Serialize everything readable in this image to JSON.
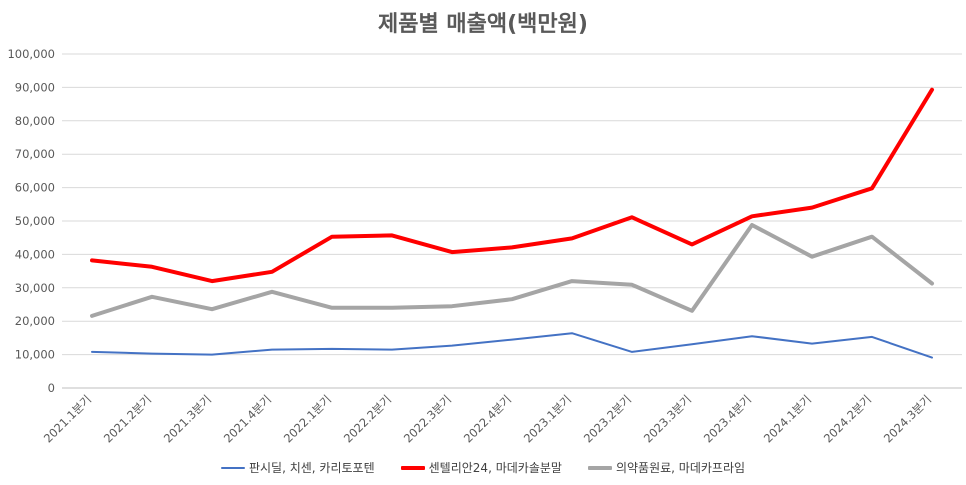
{
  "chart_data": {
    "type": "line",
    "title": "제품별 매출액(백만원)",
    "categories": [
      "2021.1분기",
      "2021.2분기",
      "2021.3분기",
      "2021.4분기",
      "2022.1분기",
      "2022.2분기",
      "2022.3분기",
      "2022.4분기",
      "2023.1분기",
      "2023.2분기",
      "2023.3분기",
      "2023.4분기",
      "2024.1분기",
      "2024.2분기",
      "2024.3분기"
    ],
    "y_ticks": [
      "0",
      "10,000",
      "20,000",
      "30,000",
      "40,000",
      "50,000",
      "60,000",
      "70,000",
      "80,000",
      "90,000",
      "100,000"
    ],
    "ylim": [
      0,
      100000
    ],
    "grid": true,
    "legend_position": "bottom",
    "series": [
      {
        "name": "판시딜, 치센, 카리토포텐",
        "color": "#4472C4",
        "values": [
          10800,
          10300,
          10000,
          11500,
          11700,
          11500,
          12700,
          14500,
          16400,
          10800,
          13100,
          15500,
          13300,
          15300,
          9100
        ]
      },
      {
        "name": "센텔리안24, 마데카솔분말",
        "color": "#FF0000",
        "values": [
          38200,
          36300,
          32000,
          34800,
          45300,
          45700,
          40700,
          42100,
          44800,
          51100,
          43000,
          51400,
          54000,
          59800,
          89300
        ]
      },
      {
        "name": "의약품원료, 마데카프라임",
        "color": "#A5A5A5",
        "values": [
          21600,
          27300,
          23600,
          28800,
          24000,
          24000,
          24500,
          26600,
          32000,
          30900,
          23100,
          48800,
          39300,
          45300,
          31300
        ]
      }
    ]
  }
}
